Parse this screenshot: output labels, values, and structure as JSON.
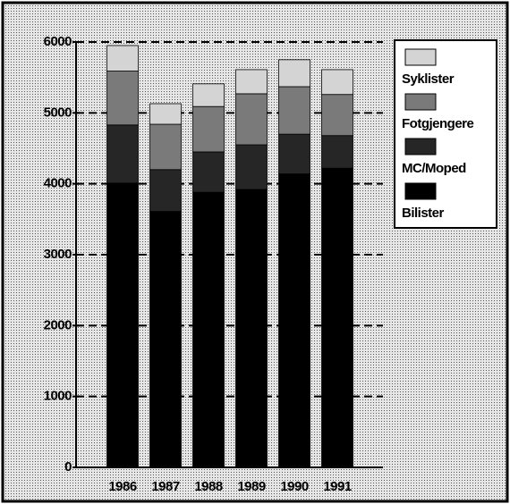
{
  "chart_data": {
    "type": "stacked-bar",
    "categories": [
      "1986",
      "1987",
      "1988",
      "1989",
      "1990",
      "1991"
    ],
    "series": [
      {
        "name": "Bilister",
        "color": "#000000",
        "values": [
          4010,
          3610,
          3880,
          3920,
          4140,
          4220
        ]
      },
      {
        "name": "MC/Moped",
        "color": "#262626",
        "values": [
          820,
          590,
          570,
          630,
          560,
          460
        ]
      },
      {
        "name": "Fotgjengere",
        "color": "#7a7a7a",
        "values": [
          760,
          640,
          640,
          720,
          670,
          580
        ]
      },
      {
        "name": "Syklister",
        "color": "#d4d4d4",
        "values": [
          360,
          290,
          320,
          340,
          380,
          350
        ]
      }
    ],
    "ylim": [
      0,
      6000
    ],
    "yticks": [
      0,
      1000,
      2000,
      3000,
      4000,
      5000,
      6000
    ],
    "grid": true,
    "legend": "right"
  }
}
